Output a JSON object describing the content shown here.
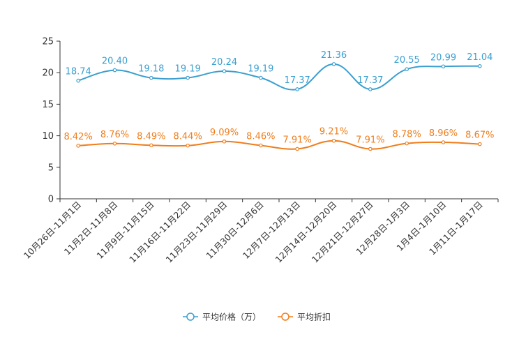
{
  "chart_data": {
    "type": "line",
    "categories": [
      "10月26日-11月1日",
      "11月2日-11月8日",
      "11月9日-11月15日",
      "11月16日-11月22日",
      "11月23日-11月29日",
      "11月30日-12月6日",
      "12月7日-12月13日",
      "12月14日-12月20日",
      "12月21日-12月27日",
      "12月28日-1月3日",
      "1月4日-1月10日",
      "1月11日-1月17日"
    ],
    "series": [
      {
        "name": "平均价格（万）",
        "color": "#3a9fd0",
        "values": [
          18.74,
          20.4,
          19.18,
          19.19,
          20.24,
          19.19,
          17.37,
          21.36,
          17.37,
          20.55,
          20.99,
          21.04
        ],
        "labels": [
          "18.74",
          "20.40",
          "19.18",
          "19.19",
          "20.24",
          "19.19",
          "17.37",
          "21.36",
          "17.37",
          "20.55",
          "20.99",
          "21.04"
        ]
      },
      {
        "name": "平均折扣",
        "color": "#f07d1a",
        "values": [
          8.42,
          8.76,
          8.49,
          8.44,
          9.09,
          8.46,
          7.91,
          9.21,
          7.91,
          8.78,
          8.96,
          8.67
        ],
        "labels": [
          "8.42%",
          "8.76%",
          "8.49%",
          "8.44%",
          "9.09%",
          "8.46%",
          "7.91%",
          "9.21%",
          "7.91%",
          "8.78%",
          "8.96%",
          "8.67%"
        ]
      }
    ],
    "yticks": [
      0,
      5,
      10,
      15,
      20,
      25
    ],
    "ylim": [
      0,
      25
    ],
    "title": "",
    "xlabel": "",
    "ylabel": "",
    "grid": false,
    "legend_position": "bottom-center"
  }
}
